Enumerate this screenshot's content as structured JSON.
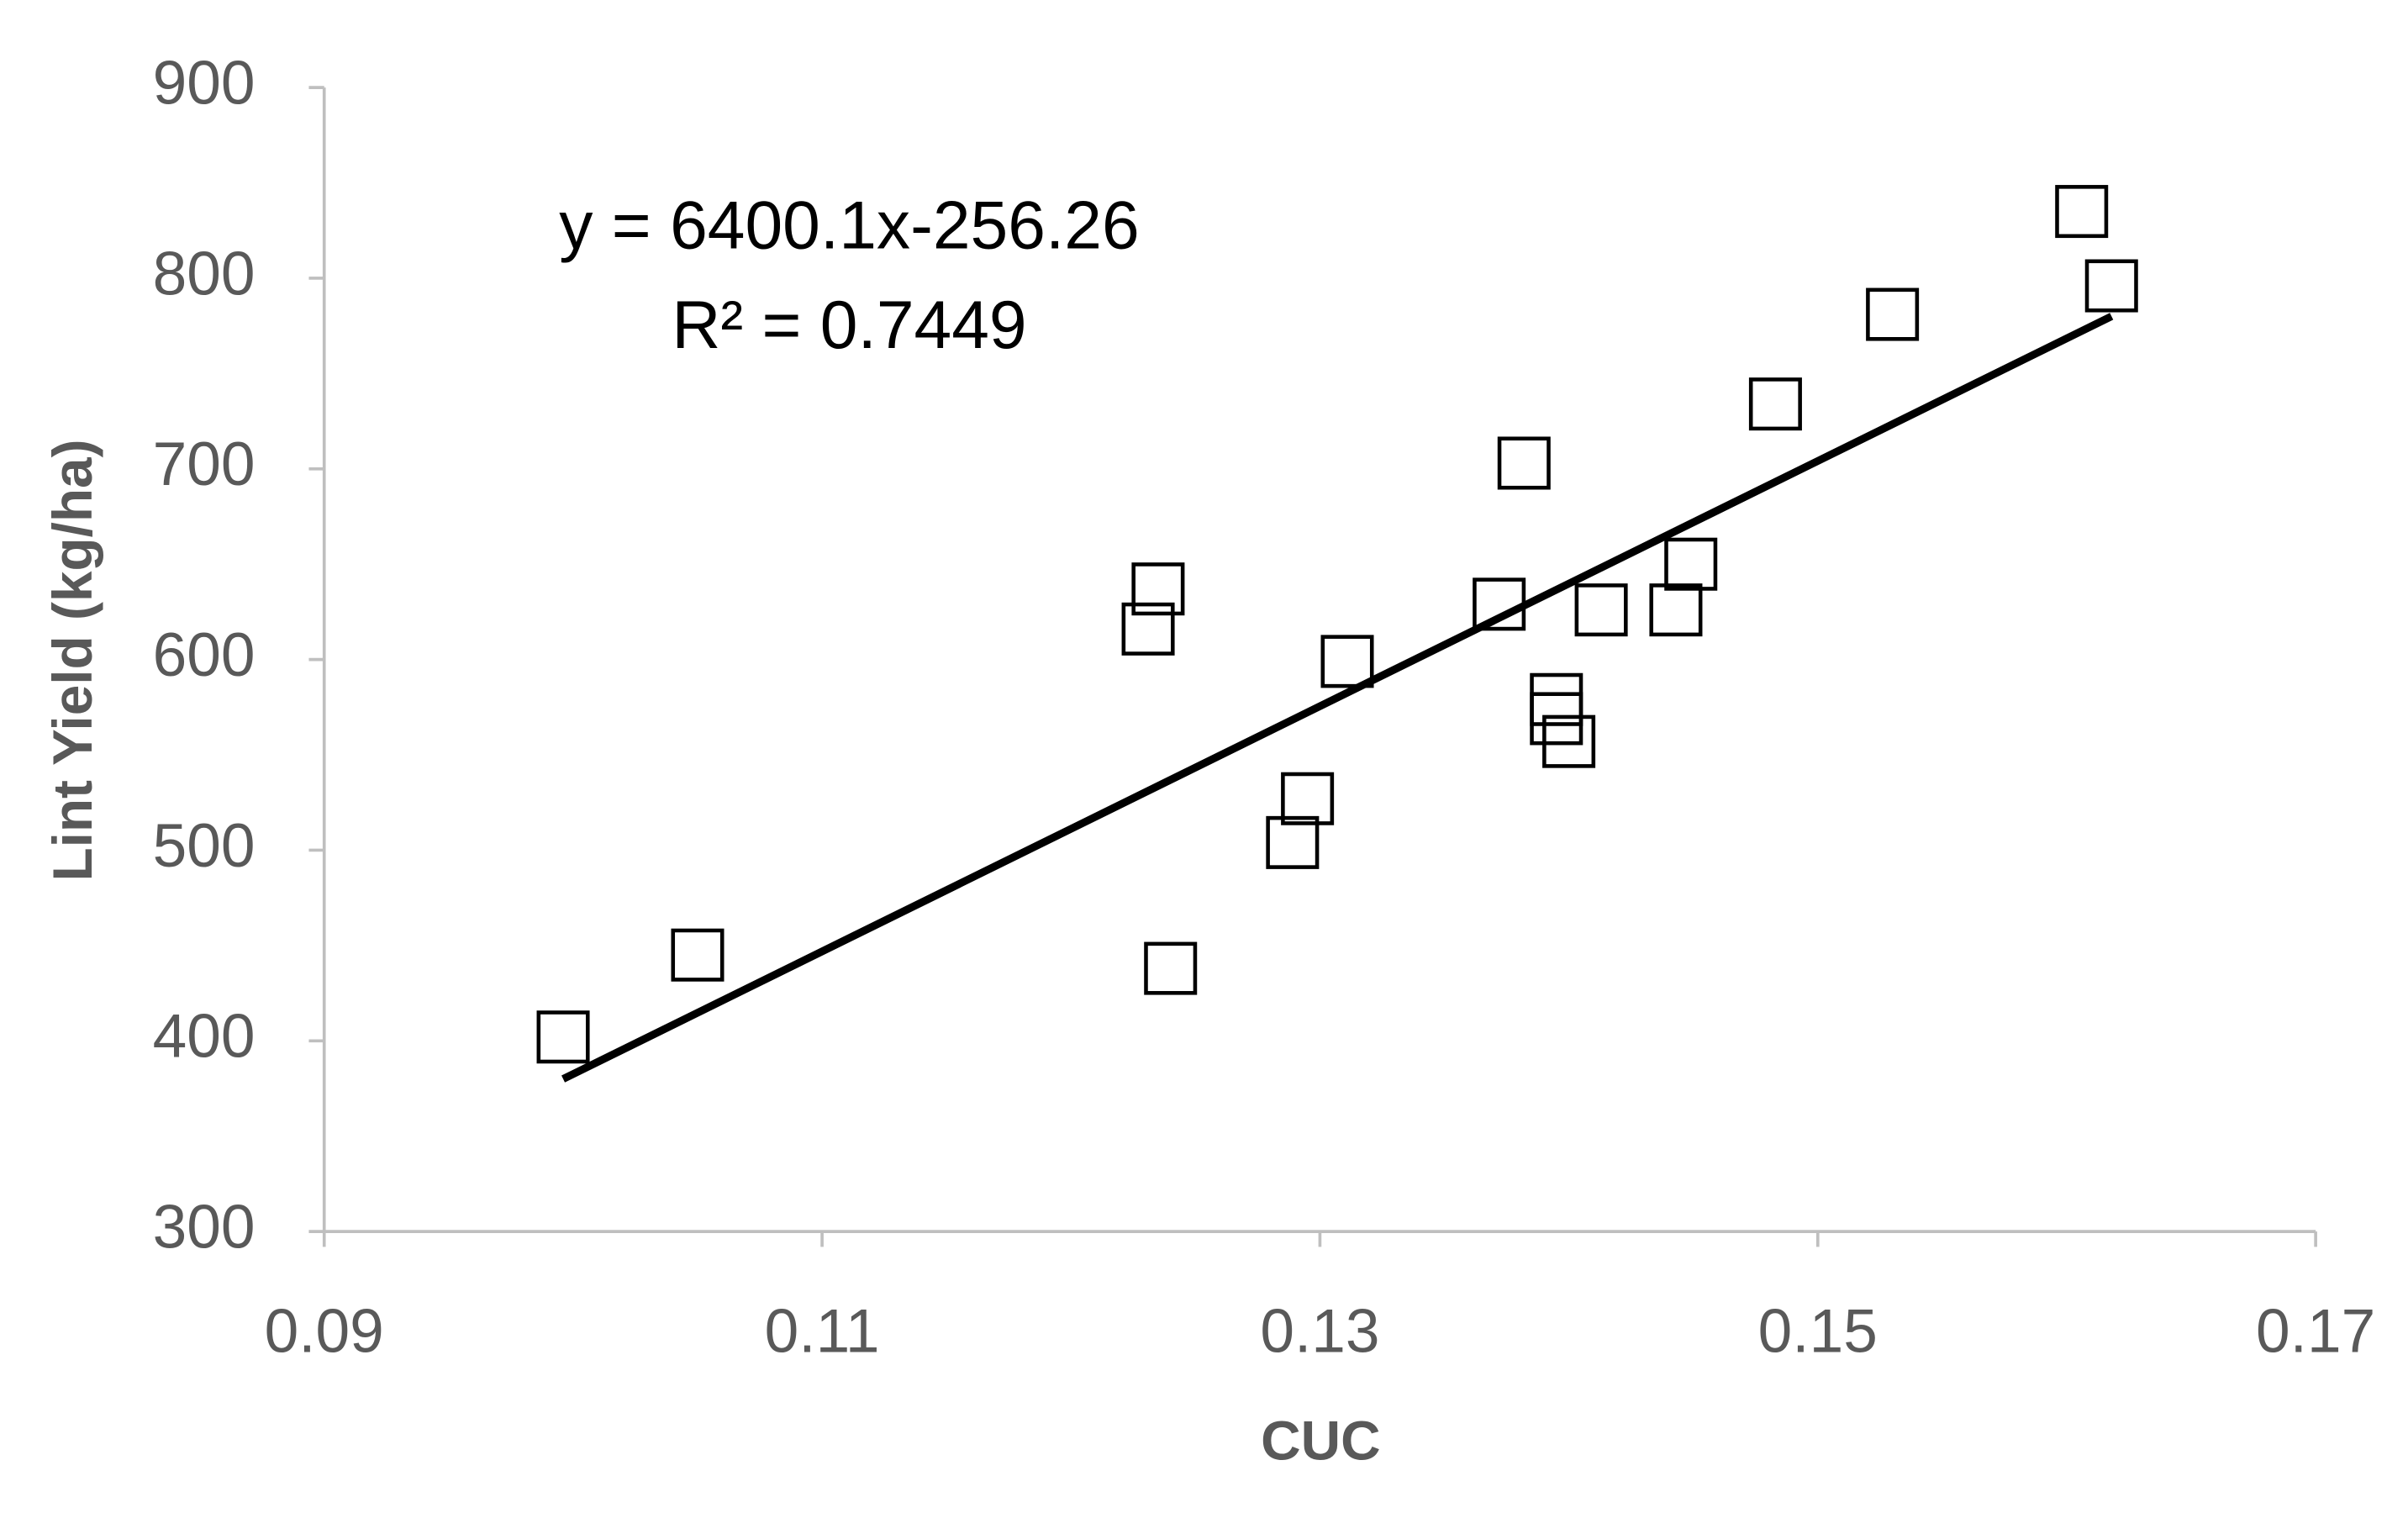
{
  "chart_data": {
    "type": "scatter",
    "x_label": "CUC",
    "y_label": "Lint Yield (kg/ha)",
    "annotations": [
      "y = 6400.1x-256.26",
      "R² = 0.7449"
    ],
    "x": [
      0.0996,
      0.105,
      0.1235,
      0.1231,
      0.124,
      0.1289,
      0.1295,
      0.1311,
      0.1372,
      0.1382,
      0.1395,
      0.1395,
      0.14,
      0.1413,
      0.1443,
      0.1449,
      0.1483,
      0.153,
      0.1606,
      0.1618
    ],
    "values": [
      402,
      445,
      637,
      616,
      438,
      504,
      527,
      599,
      629,
      703,
      579,
      569,
      557,
      626,
      626,
      650,
      734,
      781,
      835,
      796
    ],
    "color": "#000000",
    "trendline": {
      "x": [
        0.0996,
        0.1618
      ],
      "values": [
        380,
        780
      ],
      "color": "#000000"
    },
    "xlim": [
      0.09,
      0.17
    ],
    "xticks": [
      0.09,
      0.11,
      0.13,
      0.15,
      0.17
    ],
    "ylim": [
      300,
      900
    ],
    "yticks": [
      300,
      400,
      500,
      600,
      700,
      800,
      900
    ],
    "grid": false
  }
}
